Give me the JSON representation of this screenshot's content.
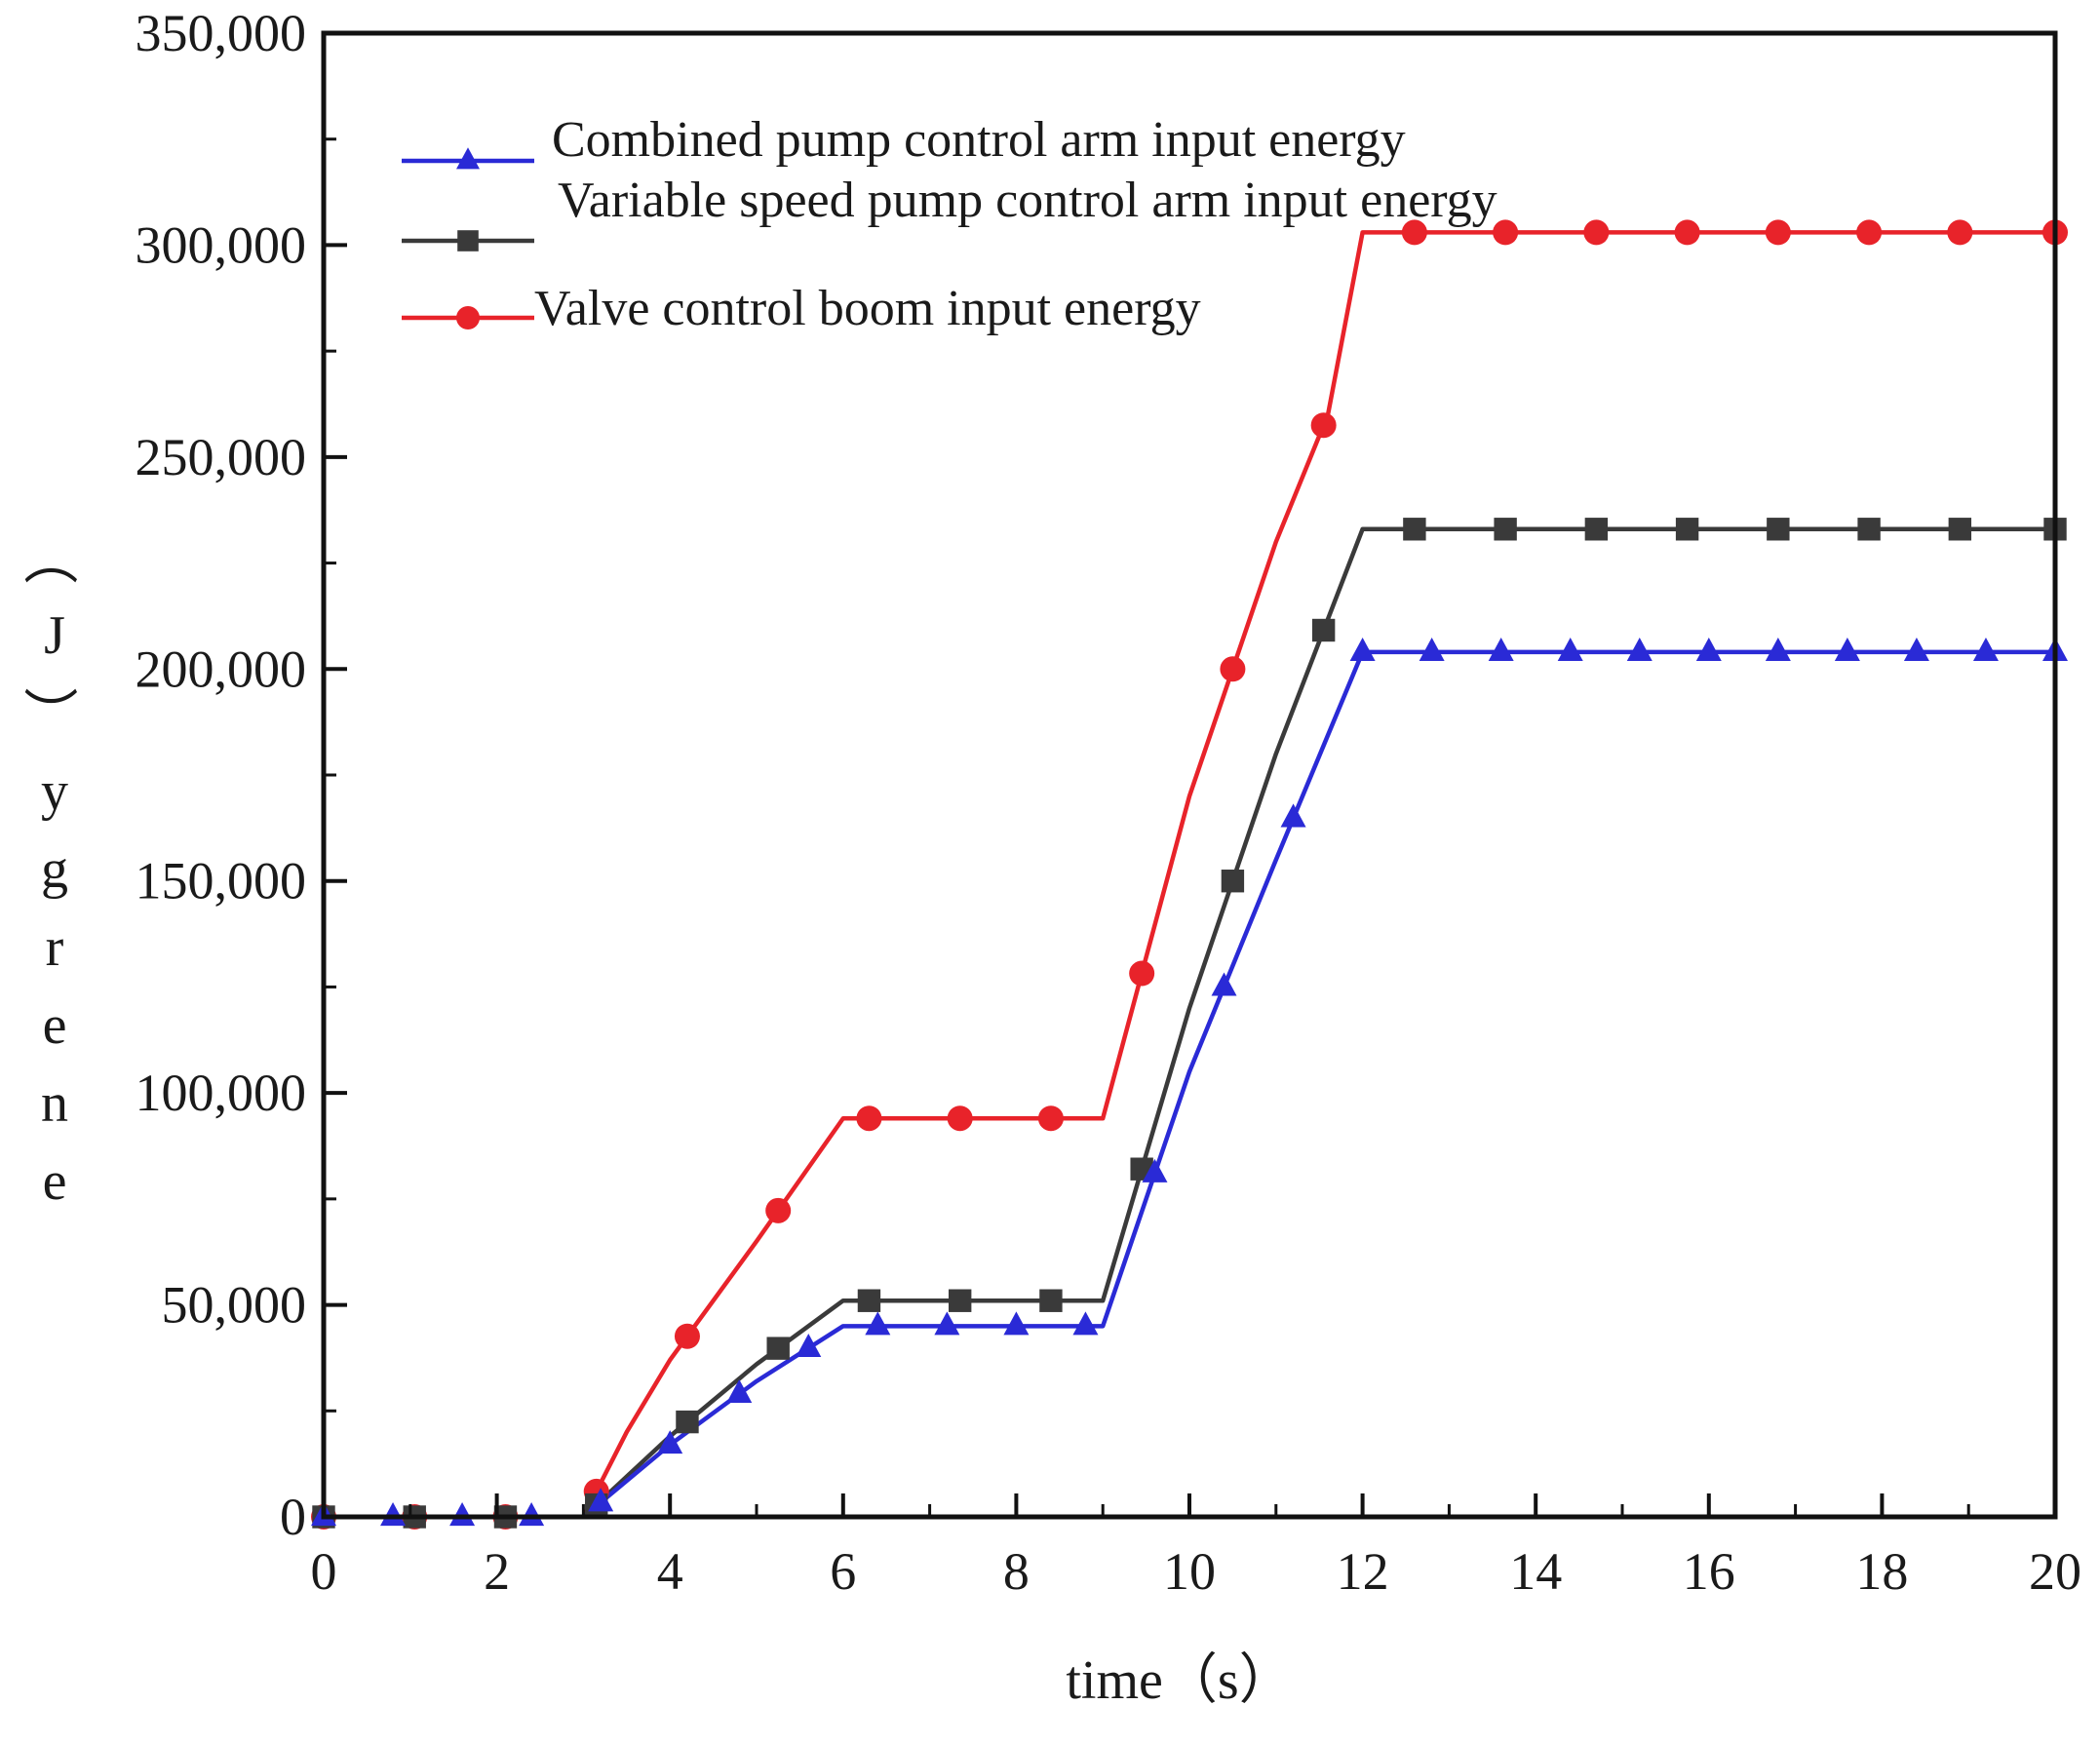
{
  "chart_data": {
    "type": "line",
    "title": "",
    "xlabel": "time（s）",
    "ylabel": "energy（J）",
    "xlim": [
      0,
      20
    ],
    "ylim": [
      0,
      350000
    ],
    "x_ticks": [
      0,
      2,
      4,
      6,
      8,
      10,
      12,
      14,
      16,
      18,
      20
    ],
    "x_tick_labels": [
      "0",
      "2",
      "4",
      "6",
      "8",
      "10",
      "12",
      "14",
      "16",
      "18",
      "20"
    ],
    "y_ticks": [
      0,
      50000,
      100000,
      150000,
      200000,
      250000,
      300000,
      350000
    ],
    "y_tick_labels": [
      "0",
      "50,000",
      "100,000",
      "150,000",
      "200,000",
      "250,000",
      "300,000",
      "350,000"
    ],
    "grid": false,
    "legend_position": "top-left",
    "series": [
      {
        "name": "Combined pump control arm input energy",
        "color": "#2a2ad6",
        "marker": "triangle",
        "x": [
          0,
          3,
          4,
          5,
          6,
          9,
          10,
          11,
          12,
          20
        ],
        "y": [
          0,
          0,
          17000,
          32000,
          45000,
          45000,
          105000,
          155000,
          204000,
          204000
        ],
        "marker_x": [
          0,
          0.8,
          1.6,
          2.4,
          3.2,
          4.0,
          4.8,
          5.6,
          6.4,
          7.2,
          8.0,
          8.8,
          9.6,
          10.4,
          11.2,
          12.0,
          12.8,
          13.6,
          14.4,
          15.2,
          16.0,
          16.8,
          17.6,
          18.4,
          19.2,
          20.0
        ]
      },
      {
        "name": "Variable speed pump control arm input energy",
        "color": "#3a3a3a",
        "marker": "square",
        "x": [
          0,
          3,
          4,
          5,
          6,
          9,
          10,
          11,
          12,
          20
        ],
        "y": [
          0,
          0,
          19000,
          36000,
          51000,
          51000,
          120000,
          180000,
          233000,
          233000
        ],
        "marker_x": [
          0,
          1.05,
          2.1,
          3.15,
          4.2,
          5.25,
          6.3,
          7.35,
          8.4,
          9.45,
          10.5,
          11.55,
          12.6,
          13.65,
          14.7,
          15.75,
          16.8,
          17.85,
          18.9,
          20.0
        ]
      },
      {
        "name": "Valve control boom input energy",
        "color": "#e8232a",
        "marker": "circle",
        "x": [
          0,
          3,
          3.5,
          4,
          5,
          6,
          9,
          10,
          11,
          11.6,
          12,
          20
        ],
        "y": [
          0,
          0,
          20000,
          37000,
          65000,
          94000,
          94000,
          170000,
          230000,
          260000,
          303000,
          303000
        ],
        "marker_x": [
          0,
          1.05,
          2.1,
          3.15,
          4.2,
          5.25,
          6.3,
          7.35,
          8.4,
          9.45,
          10.5,
          11.55,
          12.6,
          13.65,
          14.7,
          15.75,
          16.8,
          17.85,
          18.9,
          20.0
        ]
      }
    ]
  }
}
